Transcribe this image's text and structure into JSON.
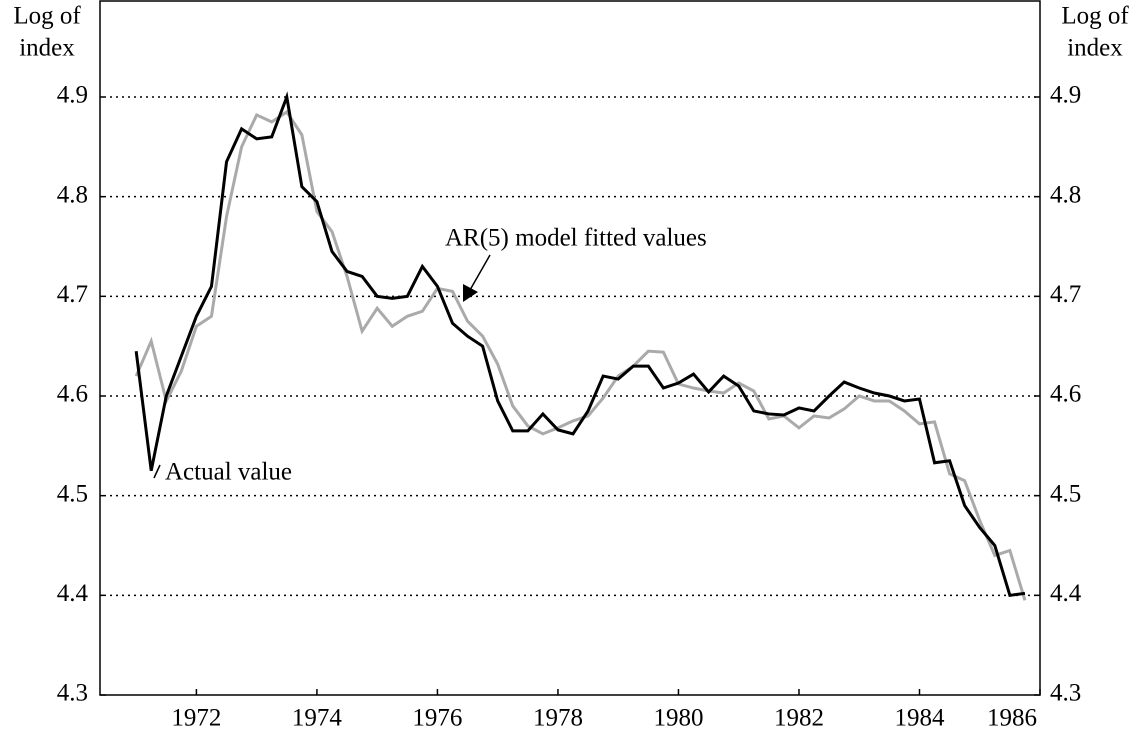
{
  "chart_data": {
    "type": "line",
    "ylabel_lines": [
      "Log of",
      "index"
    ],
    "y2label_lines": [
      "Log of",
      "index"
    ],
    "annotations": [
      "Actual value",
      "AR(5) model fitted values"
    ],
    "x": [
      1971,
      1971.25,
      1971.5,
      1971.75,
      1972,
      1972.25,
      1972.5,
      1972.75,
      1973,
      1973.25,
      1973.5,
      1973.75,
      1974,
      1974.25,
      1974.5,
      1974.75,
      1975,
      1975.25,
      1975.5,
      1975.75,
      1976,
      1976.25,
      1976.5,
      1976.75,
      1977,
      1977.25,
      1977.5,
      1977.75,
      1978,
      1978.25,
      1978.5,
      1978.75,
      1979,
      1979.25,
      1979.5,
      1979.75,
      1980,
      1980.25,
      1980.5,
      1980.75,
      1981,
      1981.25,
      1981.5,
      1981.75,
      1982,
      1982.25,
      1982.5,
      1982.75,
      1983,
      1983.25,
      1983.5,
      1983.75,
      1984,
      1984.25,
      1984.5,
      1984.75,
      1985,
      1985.25,
      1985.5,
      1985.75
    ],
    "series": [
      {
        "name": "Actual value",
        "color": "#000000",
        "width": 3,
        "values": [
          4.645,
          4.525,
          4.6,
          4.64,
          4.68,
          4.71,
          4.835,
          4.868,
          4.858,
          4.86,
          4.9,
          4.81,
          4.795,
          4.745,
          4.725,
          4.72,
          4.7,
          4.698,
          4.7,
          4.73,
          4.71,
          4.673,
          4.66,
          4.65,
          4.595,
          4.565,
          4.565,
          4.582,
          4.566,
          4.562,
          4.585,
          4.62,
          4.617,
          4.63,
          4.63,
          4.608,
          4.613,
          4.622,
          4.604,
          4.62,
          4.61,
          4.585,
          4.582,
          4.581,
          4.588,
          4.585,
          4.6,
          4.614,
          4.608,
          4.603,
          4.6,
          4.595,
          4.597,
          4.533,
          4.535,
          4.49,
          4.468,
          4.45,
          4.4,
          4.402
        ]
      },
      {
        "name": "AR(5) model fitted values",
        "color": "#aaaaaa",
        "width": 3,
        "values": [
          4.62,
          4.655,
          4.595,
          4.625,
          4.67,
          4.68,
          4.78,
          4.85,
          4.882,
          4.875,
          4.885,
          4.862,
          4.785,
          4.765,
          4.72,
          4.665,
          4.688,
          4.67,
          4.68,
          4.685,
          4.708,
          4.705,
          4.675,
          4.66,
          4.632,
          4.59,
          4.57,
          4.562,
          4.568,
          4.575,
          4.58,
          4.598,
          4.62,
          4.63,
          4.645,
          4.644,
          4.612,
          4.608,
          4.605,
          4.603,
          4.613,
          4.605,
          4.577,
          4.58,
          4.568,
          4.58,
          4.578,
          4.587,
          4.6,
          4.595,
          4.595,
          4.585,
          4.572,
          4.574,
          4.522,
          4.515,
          4.475,
          4.44,
          4.445,
          4.395
        ]
      }
    ],
    "xlim": [
      1970.4,
      1986
    ],
    "xticks": [
      1972,
      1974,
      1976,
      1978,
      1980,
      1982,
      1984,
      1986
    ],
    "ylim": [
      4.3,
      4.9
    ],
    "yticks": [
      4.3,
      4.4,
      4.5,
      4.6,
      4.7,
      4.8,
      4.9
    ],
    "y2lim": [
      4.3,
      4.9
    ],
    "y2ticks": [
      4.3,
      4.4,
      4.5,
      4.6,
      4.7,
      4.8,
      4.9
    ],
    "grid": true
  }
}
